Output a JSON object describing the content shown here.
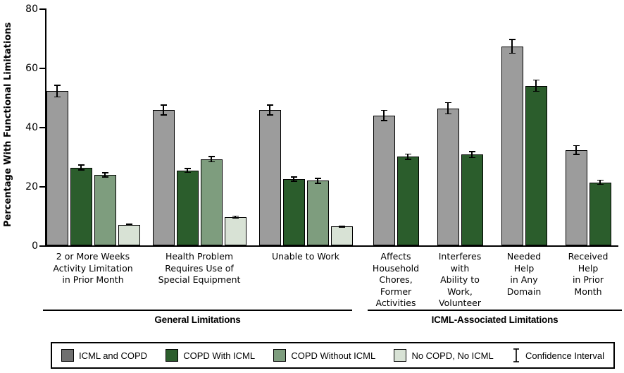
{
  "chart_data": {
    "type": "bar",
    "title": "",
    "xlabel": "",
    "ylabel": "Percentage With Functional Limitations",
    "ylim": [
      0,
      80
    ],
    "yticks": [
      0,
      20,
      40,
      60,
      80
    ],
    "grid": false,
    "error_bars": true,
    "legend_position": "bottom-box",
    "categories": [
      "2 or More Weeks\nActivity Limitation\nin Prior Month",
      "Health Problem\nRequires Use of\nSpecial Equipment",
      "Unable to Work",
      "Affects\nHousehold\nChores,\nFormer\nActivities",
      "Interferes\nwith\nAbility to\nWork,\nVolunteer",
      "Needed\nHelp\nin Any\nDomain",
      "Received\nHelp\nin Prior\nMonth"
    ],
    "series": [
      {
        "name": "ICML and COPD",
        "color": "#9C9C9C",
        "legend_color": "#6F6F6F",
        "values": [
          52.1,
          45.7,
          45.7,
          43.9,
          46.3,
          67.2,
          32.2
        ],
        "ci": [
          2.0,
          1.7,
          1.7,
          1.7,
          1.9,
          2.3,
          1.5
        ]
      },
      {
        "name": "COPD With ICML",
        "color": "#2B5D2C",
        "legend_color": "#2B5D2C",
        "values": [
          26.3,
          25.3,
          22.4,
          29.9,
          30.7,
          53.9,
          21.3
        ],
        "ci": [
          0.8,
          0.7,
          0.7,
          0.9,
          1.0,
          1.9,
          0.7
        ]
      },
      {
        "name": "COPD Without ICML",
        "color": "#7E9D7E",
        "legend_color": "#7E9D7E",
        "values": [
          23.8,
          29.1,
          21.8,
          null,
          null,
          null,
          null
        ],
        "ci": [
          0.7,
          0.9,
          0.8,
          null,
          null,
          null,
          null
        ]
      },
      {
        "name": "No COPD, No ICML",
        "color": "#D8E2D5",
        "legend_color": "#D8E2D5",
        "values": [
          7.0,
          9.6,
          6.4,
          null,
          null,
          null,
          null
        ],
        "ci": [
          0.2,
          0.3,
          0.2,
          null,
          null,
          null,
          null
        ]
      }
    ],
    "sections": [
      {
        "label": "General Limitations",
        "category_span": [
          0,
          2
        ]
      },
      {
        "label": "ICML-Associated Limitations",
        "category_span": [
          3,
          6
        ]
      }
    ],
    "legend_ci_label": "Confidence Interval"
  }
}
